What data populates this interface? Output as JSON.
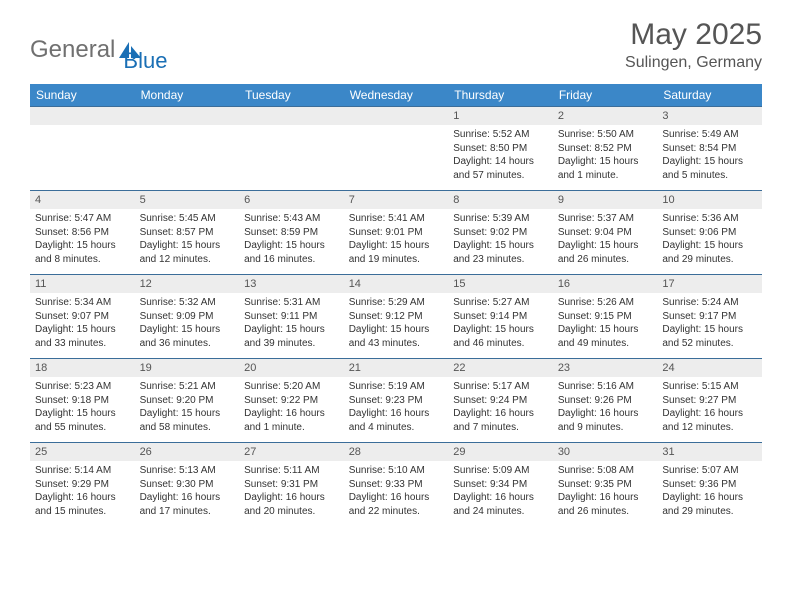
{
  "brand": {
    "part1": "General",
    "part2": "Blue"
  },
  "title": "May 2025",
  "location": "Sulingen, Germany",
  "colors": {
    "header_bg": "#3b87c8",
    "header_text": "#ffffff",
    "daynum_bg": "#ededed",
    "daynum_text": "#555555",
    "border": "#3b6d99",
    "logo_gray": "#707070",
    "logo_blue": "#1a6fb5"
  },
  "dow": [
    "Sunday",
    "Monday",
    "Tuesday",
    "Wednesday",
    "Thursday",
    "Friday",
    "Saturday"
  ],
  "weeks": [
    [
      null,
      null,
      null,
      null,
      {
        "n": "1",
        "sr": "Sunrise: 5:52 AM",
        "ss": "Sunset: 8:50 PM",
        "dl": "Daylight: 14 hours and 57 minutes."
      },
      {
        "n": "2",
        "sr": "Sunrise: 5:50 AM",
        "ss": "Sunset: 8:52 PM",
        "dl": "Daylight: 15 hours and 1 minute."
      },
      {
        "n": "3",
        "sr": "Sunrise: 5:49 AM",
        "ss": "Sunset: 8:54 PM",
        "dl": "Daylight: 15 hours and 5 minutes."
      }
    ],
    [
      {
        "n": "4",
        "sr": "Sunrise: 5:47 AM",
        "ss": "Sunset: 8:56 PM",
        "dl": "Daylight: 15 hours and 8 minutes."
      },
      {
        "n": "5",
        "sr": "Sunrise: 5:45 AM",
        "ss": "Sunset: 8:57 PM",
        "dl": "Daylight: 15 hours and 12 minutes."
      },
      {
        "n": "6",
        "sr": "Sunrise: 5:43 AM",
        "ss": "Sunset: 8:59 PM",
        "dl": "Daylight: 15 hours and 16 minutes."
      },
      {
        "n": "7",
        "sr": "Sunrise: 5:41 AM",
        "ss": "Sunset: 9:01 PM",
        "dl": "Daylight: 15 hours and 19 minutes."
      },
      {
        "n": "8",
        "sr": "Sunrise: 5:39 AM",
        "ss": "Sunset: 9:02 PM",
        "dl": "Daylight: 15 hours and 23 minutes."
      },
      {
        "n": "9",
        "sr": "Sunrise: 5:37 AM",
        "ss": "Sunset: 9:04 PM",
        "dl": "Daylight: 15 hours and 26 minutes."
      },
      {
        "n": "10",
        "sr": "Sunrise: 5:36 AM",
        "ss": "Sunset: 9:06 PM",
        "dl": "Daylight: 15 hours and 29 minutes."
      }
    ],
    [
      {
        "n": "11",
        "sr": "Sunrise: 5:34 AM",
        "ss": "Sunset: 9:07 PM",
        "dl": "Daylight: 15 hours and 33 minutes."
      },
      {
        "n": "12",
        "sr": "Sunrise: 5:32 AM",
        "ss": "Sunset: 9:09 PM",
        "dl": "Daylight: 15 hours and 36 minutes."
      },
      {
        "n": "13",
        "sr": "Sunrise: 5:31 AM",
        "ss": "Sunset: 9:11 PM",
        "dl": "Daylight: 15 hours and 39 minutes."
      },
      {
        "n": "14",
        "sr": "Sunrise: 5:29 AM",
        "ss": "Sunset: 9:12 PM",
        "dl": "Daylight: 15 hours and 43 minutes."
      },
      {
        "n": "15",
        "sr": "Sunrise: 5:27 AM",
        "ss": "Sunset: 9:14 PM",
        "dl": "Daylight: 15 hours and 46 minutes."
      },
      {
        "n": "16",
        "sr": "Sunrise: 5:26 AM",
        "ss": "Sunset: 9:15 PM",
        "dl": "Daylight: 15 hours and 49 minutes."
      },
      {
        "n": "17",
        "sr": "Sunrise: 5:24 AM",
        "ss": "Sunset: 9:17 PM",
        "dl": "Daylight: 15 hours and 52 minutes."
      }
    ],
    [
      {
        "n": "18",
        "sr": "Sunrise: 5:23 AM",
        "ss": "Sunset: 9:18 PM",
        "dl": "Daylight: 15 hours and 55 minutes."
      },
      {
        "n": "19",
        "sr": "Sunrise: 5:21 AM",
        "ss": "Sunset: 9:20 PM",
        "dl": "Daylight: 15 hours and 58 minutes."
      },
      {
        "n": "20",
        "sr": "Sunrise: 5:20 AM",
        "ss": "Sunset: 9:22 PM",
        "dl": "Daylight: 16 hours and 1 minute."
      },
      {
        "n": "21",
        "sr": "Sunrise: 5:19 AM",
        "ss": "Sunset: 9:23 PM",
        "dl": "Daylight: 16 hours and 4 minutes."
      },
      {
        "n": "22",
        "sr": "Sunrise: 5:17 AM",
        "ss": "Sunset: 9:24 PM",
        "dl": "Daylight: 16 hours and 7 minutes."
      },
      {
        "n": "23",
        "sr": "Sunrise: 5:16 AM",
        "ss": "Sunset: 9:26 PM",
        "dl": "Daylight: 16 hours and 9 minutes."
      },
      {
        "n": "24",
        "sr": "Sunrise: 5:15 AM",
        "ss": "Sunset: 9:27 PM",
        "dl": "Daylight: 16 hours and 12 minutes."
      }
    ],
    [
      {
        "n": "25",
        "sr": "Sunrise: 5:14 AM",
        "ss": "Sunset: 9:29 PM",
        "dl": "Daylight: 16 hours and 15 minutes."
      },
      {
        "n": "26",
        "sr": "Sunrise: 5:13 AM",
        "ss": "Sunset: 9:30 PM",
        "dl": "Daylight: 16 hours and 17 minutes."
      },
      {
        "n": "27",
        "sr": "Sunrise: 5:11 AM",
        "ss": "Sunset: 9:31 PM",
        "dl": "Daylight: 16 hours and 20 minutes."
      },
      {
        "n": "28",
        "sr": "Sunrise: 5:10 AM",
        "ss": "Sunset: 9:33 PM",
        "dl": "Daylight: 16 hours and 22 minutes."
      },
      {
        "n": "29",
        "sr": "Sunrise: 5:09 AM",
        "ss": "Sunset: 9:34 PM",
        "dl": "Daylight: 16 hours and 24 minutes."
      },
      {
        "n": "30",
        "sr": "Sunrise: 5:08 AM",
        "ss": "Sunset: 9:35 PM",
        "dl": "Daylight: 16 hours and 26 minutes."
      },
      {
        "n": "31",
        "sr": "Sunrise: 5:07 AM",
        "ss": "Sunset: 9:36 PM",
        "dl": "Daylight: 16 hours and 29 minutes."
      }
    ]
  ]
}
